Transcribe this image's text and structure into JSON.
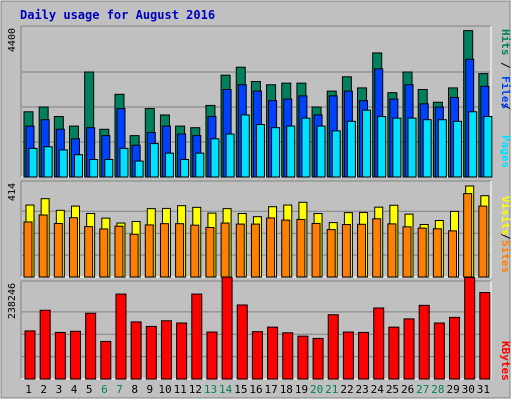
{
  "title": "Daily usage for August 2016",
  "colors": {
    "background": "#C0C0C0",
    "panel": "#C0C0C0",
    "hits": "#00805C",
    "files": "#0040FF",
    "pages": "#00E0FF",
    "visits": "#FFFF00",
    "sites": "#FF8000",
    "kbytes": "#FF0000",
    "title": "#0000C0",
    "weekend": "#00805C"
  },
  "legend": {
    "pages": "Pages",
    "files": "Files",
    "hits": "Hits",
    "sites": "Sites",
    "visits": "Visits",
    "kbytes": "KBytes",
    "separator": "/"
  },
  "chart_data": {
    "type": "bar",
    "categories": [
      "1",
      "2",
      "3",
      "4",
      "5",
      "6",
      "7",
      "8",
      "9",
      "10",
      "11",
      "12",
      "13",
      "14",
      "15",
      "16",
      "17",
      "18",
      "19",
      "20",
      "21",
      "22",
      "23",
      "24",
      "25",
      "26",
      "27",
      "28",
      "29",
      "30",
      "31"
    ],
    "weekend_days": [
      6,
      7,
      13,
      14,
      20,
      21,
      27,
      28
    ],
    "panels": [
      {
        "id": "hits",
        "ymax": 4400,
        "ymax_label": "4400",
        "series": [
          {
            "name": "Hits",
            "key": "hits",
            "values": [
              2050,
              2200,
              1900,
              1600,
              3300,
              1500,
              2600,
              1300,
              2150,
              1950,
              1600,
              1550,
              2250,
              3200,
              3450,
              3000,
              2900,
              2950,
              2950,
              2200,
              2700,
              3150,
              2800,
              3900,
              2650,
              3300,
              2750,
              2350,
              2800,
              4600,
              3250
            ]
          },
          {
            "name": "Files",
            "key": "files",
            "values": [
              1600,
              1800,
              1500,
              1200,
              1550,
              1300,
              2150,
              1000,
              1400,
              1600,
              1350,
              1300,
              1900,
              2750,
              2900,
              2700,
              2400,
              2450,
              2550,
              1950,
              2550,
              2700,
              2400,
              3400,
              2450,
              2900,
              2300,
              2200,
              2500,
              3700,
              2850
            ]
          },
          {
            "name": "Pages",
            "key": "pages",
            "values": [
              900,
              950,
              850,
              700,
              550,
              550,
              900,
              500,
              1050,
              750,
              550,
              750,
              1200,
              1350,
              1950,
              1650,
              1550,
              1600,
              1850,
              1600,
              1450,
              1750,
              2100,
              1900,
              1850,
              1850,
              1800,
              1800,
              1750,
              2050,
              1900
            ]
          }
        ]
      },
      {
        "id": "visits",
        "ymax": 414,
        "ymax_label": "414",
        "series": [
          {
            "name": "Visits",
            "key": "visits",
            "values": [
              340,
              370,
              315,
              335,
              300,
              278,
              255,
              262,
              323,
              324,
              337,
              329,
              302,
              323,
              300,
              285,
              332,
              340,
              353,
              300,
              257,
              304,
              305,
              330,
              339,
              297,
              248,
              267,
              310,
              430,
              384
            ]
          },
          {
            "name": "Sites",
            "key": "sites",
            "values": [
              260,
              293,
              253,
              280,
              238,
              227,
              240,
              202,
              246,
              252,
              252,
              245,
              234,
              255,
              250,
              250,
              279,
              269,
              272,
              253,
              224,
              248,
              249,
              275,
              251,
              237,
              231,
              228,
              218,
              394,
              335
            ]
          }
        ]
      },
      {
        "id": "kbytes",
        "ymax": 238246,
        "ymax_label": "238246",
        "series": [
          {
            "name": "KBytes",
            "key": "kbytes",
            "values": [
              128000,
              183000,
              124000,
              127000,
              175000,
              100000,
              226000,
              152000,
              140000,
              155000,
              149000,
              226000,
              125000,
              271000,
              197000,
              126000,
              138000,
              123000,
              114000,
              108000,
              171000,
              125000,
              124000,
              189000,
              138000,
              160000,
              196000,
              149000,
              164000,
              270000,
              230000
            ]
          }
        ]
      }
    ]
  }
}
